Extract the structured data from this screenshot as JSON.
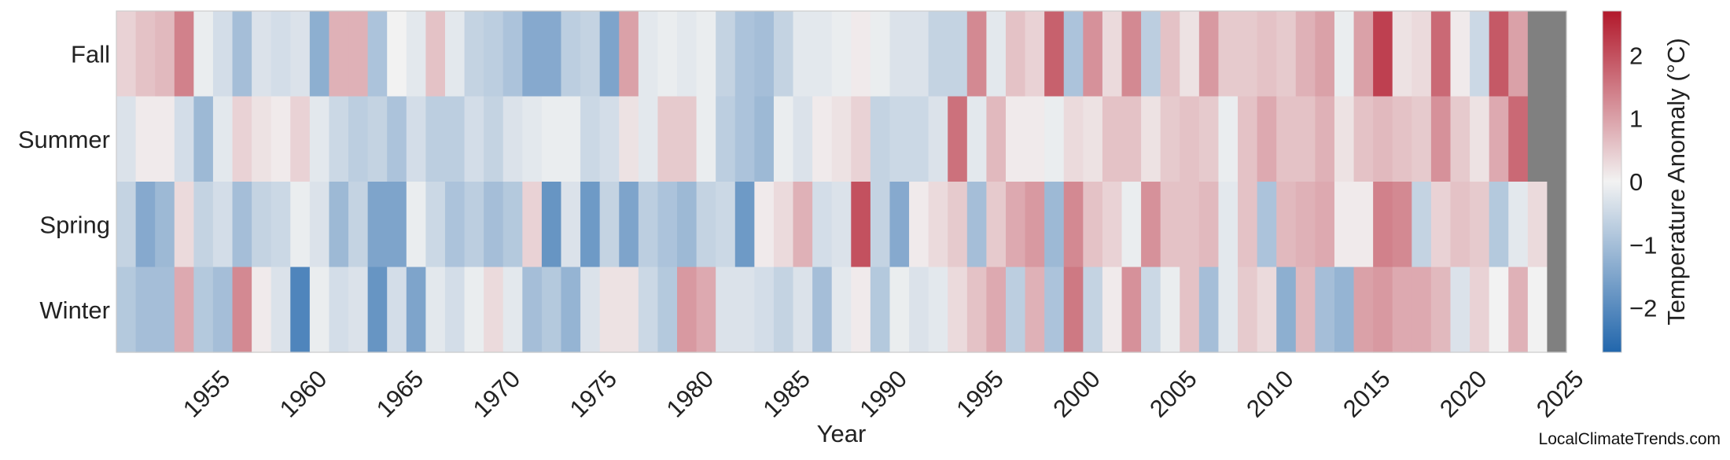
{
  "chart_data": {
    "type": "heatmap",
    "title": "",
    "xlabel": "Year",
    "ylabel": "",
    "rows": [
      "Fall",
      "Summer",
      "Spring",
      "Winter"
    ],
    "x_start": 1951,
    "x_end": 2025,
    "x_ticks": [
      1955,
      1960,
      1965,
      1970,
      1975,
      1980,
      1985,
      1990,
      1995,
      2000,
      2005,
      2010,
      2015,
      2020,
      2025
    ],
    "colorbar": {
      "label": "Temperature Anomaly (°C)",
      "min": -2.7,
      "max": 2.7,
      "ticks": [
        -2,
        -1,
        0,
        1,
        2
      ],
      "tick_labels": [
        "−2",
        "−1",
        "0",
        "1",
        "2"
      ],
      "colormap": "diverging blue-white-red",
      "low_color": "#2166ac",
      "mid_color": "#f2f2f2",
      "high_color": "#b2182b"
    },
    "missing_color": "#808080",
    "values": {
      "Fall": [
        0.4,
        0.6,
        0.7,
        1.4,
        -0.1,
        -0.4,
        -1.0,
        -0.3,
        -0.4,
        -0.3,
        -1.3,
        0.8,
        0.8,
        -0.9,
        0.0,
        -0.2,
        0.6,
        -0.2,
        -0.6,
        -0.7,
        -0.9,
        -1.4,
        -1.4,
        -0.7,
        -0.6,
        -1.5,
        1.0,
        -0.2,
        -0.1,
        -0.2,
        -0.1,
        -0.6,
        -0.9,
        -1.0,
        -0.6,
        -0.2,
        -0.2,
        -0.1,
        0.1,
        -0.1,
        -0.3,
        -0.3,
        -0.6,
        -0.6,
        1.3,
        -0.2,
        0.6,
        0.4,
        1.8,
        -0.9,
        1.2,
        0.3,
        1.3,
        -0.7,
        0.6,
        0.2,
        1.1,
        0.5,
        0.5,
        0.6,
        0.5,
        0.8,
        1.0,
        -0.1,
        1.0,
        2.2,
        0.2,
        0.3,
        1.7,
        0.1,
        -0.5,
        1.9,
        1.0,
        null
      ],
      "Summer": [
        -0.3,
        0.1,
        0.1,
        -0.4,
        -1.1,
        -0.2,
        0.4,
        0.2,
        0.1,
        0.4,
        -0.2,
        -0.5,
        -0.7,
        -0.6,
        -0.9,
        -0.4,
        -0.7,
        -0.7,
        -0.4,
        -0.6,
        -0.3,
        -0.2,
        -0.1,
        -0.1,
        -0.5,
        -0.4,
        0.2,
        -0.2,
        0.5,
        0.5,
        -0.1,
        -0.7,
        -0.9,
        -1.1,
        -0.1,
        -0.3,
        0.1,
        0.2,
        0.4,
        -0.6,
        -0.5,
        -0.5,
        -0.3,
        1.6,
        -0.2,
        0.7,
        0.1,
        0.1,
        -0.1,
        0.3,
        0.2,
        0.6,
        0.6,
        0.2,
        0.5,
        0.6,
        0.5,
        -0.1,
        0.6,
        0.9,
        0.6,
        0.6,
        0.8,
        0.2,
        0.6,
        0.7,
        0.6,
        0.5,
        1.2,
        0.5,
        0.2,
        0.9,
        1.7,
        null
      ],
      "Spring": [
        -0.6,
        -1.4,
        -1.1,
        0.3,
        -0.6,
        -0.4,
        -1.0,
        -0.6,
        -0.5,
        -0.1,
        -0.3,
        -1.1,
        -0.6,
        -1.5,
        -1.5,
        -0.1,
        -0.5,
        -0.9,
        -0.7,
        -1.0,
        -0.8,
        0.4,
        -1.8,
        -0.3,
        -1.7,
        -0.6,
        -1.5,
        -0.7,
        -0.9,
        -1.1,
        -0.6,
        -0.5,
        -1.7,
        0.1,
        0.3,
        0.8,
        -0.4,
        -0.3,
        2.0,
        -0.6,
        -1.4,
        0.1,
        0.3,
        0.5,
        -1.0,
        0.5,
        0.9,
        1.1,
        -1.1,
        1.3,
        0.6,
        0.4,
        -0.1,
        1.2,
        0.6,
        0.6,
        0.7,
        -0.2,
        0.6,
        -0.9,
        0.7,
        0.8,
        0.9,
        0.1,
        0.1,
        1.4,
        1.3,
        -0.6,
        0.4,
        0.6,
        0.5,
        -0.8,
        -0.2,
        0.3
      ],
      "Winter": [
        -0.8,
        -1.0,
        -1.0,
        0.9,
        -0.8,
        -1.0,
        1.3,
        0.1,
        -0.3,
        -2.1,
        -0.1,
        -0.4,
        -0.3,
        -1.8,
        -0.4,
        -1.5,
        -0.2,
        -0.4,
        -0.1,
        0.3,
        -0.2,
        -1.0,
        -0.8,
        -1.2,
        -0.3,
        0.2,
        0.2,
        -0.5,
        -0.8,
        1.1,
        0.9,
        -0.3,
        -0.3,
        -0.4,
        -0.6,
        -0.3,
        -1.0,
        -0.2,
        0.1,
        -0.8,
        -0.1,
        -0.3,
        -0.2,
        0.3,
        0.6,
        0.9,
        -0.7,
        0.8,
        -0.9,
        1.5,
        -0.6,
        0.1,
        1.2,
        -0.5,
        -0.1,
        0.6,
        -1.0,
        -0.2,
        0.5,
        0.3,
        -1.3,
        0.7,
        -1.0,
        -1.2,
        1.0,
        1.1,
        0.9,
        0.9,
        0.7,
        -0.3,
        0.4,
        0.0,
        0.8,
        0.0
      ]
    }
  },
  "credit": "LocalClimateTrends.com"
}
